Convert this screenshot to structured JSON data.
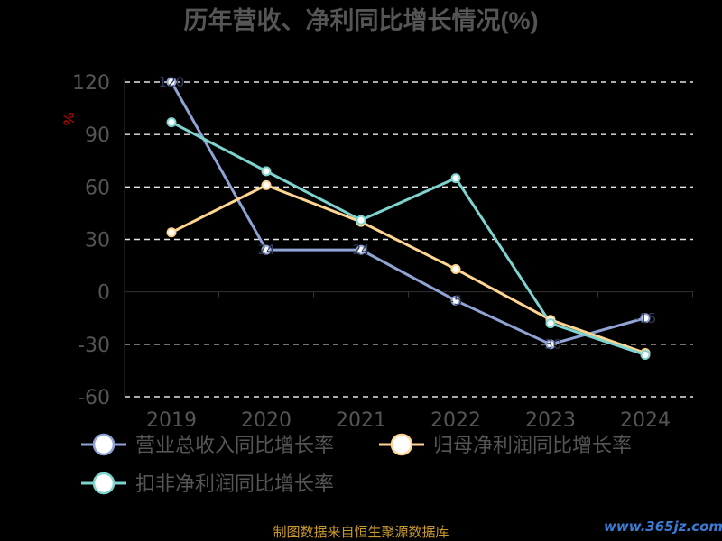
{
  "chart_data": {
    "type": "line",
    "title": "历年营收、净利同比增长情况(%)",
    "ylabel": "%",
    "xlabel": "",
    "categories": [
      "2019",
      "2020",
      "2021",
      "2022",
      "2023",
      "2024"
    ],
    "ylim": [
      -60,
      120
    ],
    "yticks": [
      -60,
      -30,
      0,
      30,
      60,
      90,
      120
    ],
    "grid": true,
    "legend_position": "bottom",
    "series": [
      {
        "name": "营业总收入同比增长率",
        "color": "#8fa3d4",
        "values": [
          120,
          24,
          24,
          -5,
          -30,
          -15
        ]
      },
      {
        "name": "归母净利润同比增长率",
        "color": "#ffd591",
        "values": [
          34,
          61,
          40,
          13,
          -16,
          -35
        ]
      },
      {
        "name": "扣非净利润同比增长率",
        "color": "#7fd3cf",
        "values": [
          97,
          69,
          41,
          65,
          -18,
          -36
        ]
      }
    ]
  },
  "footer": {
    "source": "制图数据来自恒生聚源数据库",
    "watermark": "www.365jz.com"
  }
}
